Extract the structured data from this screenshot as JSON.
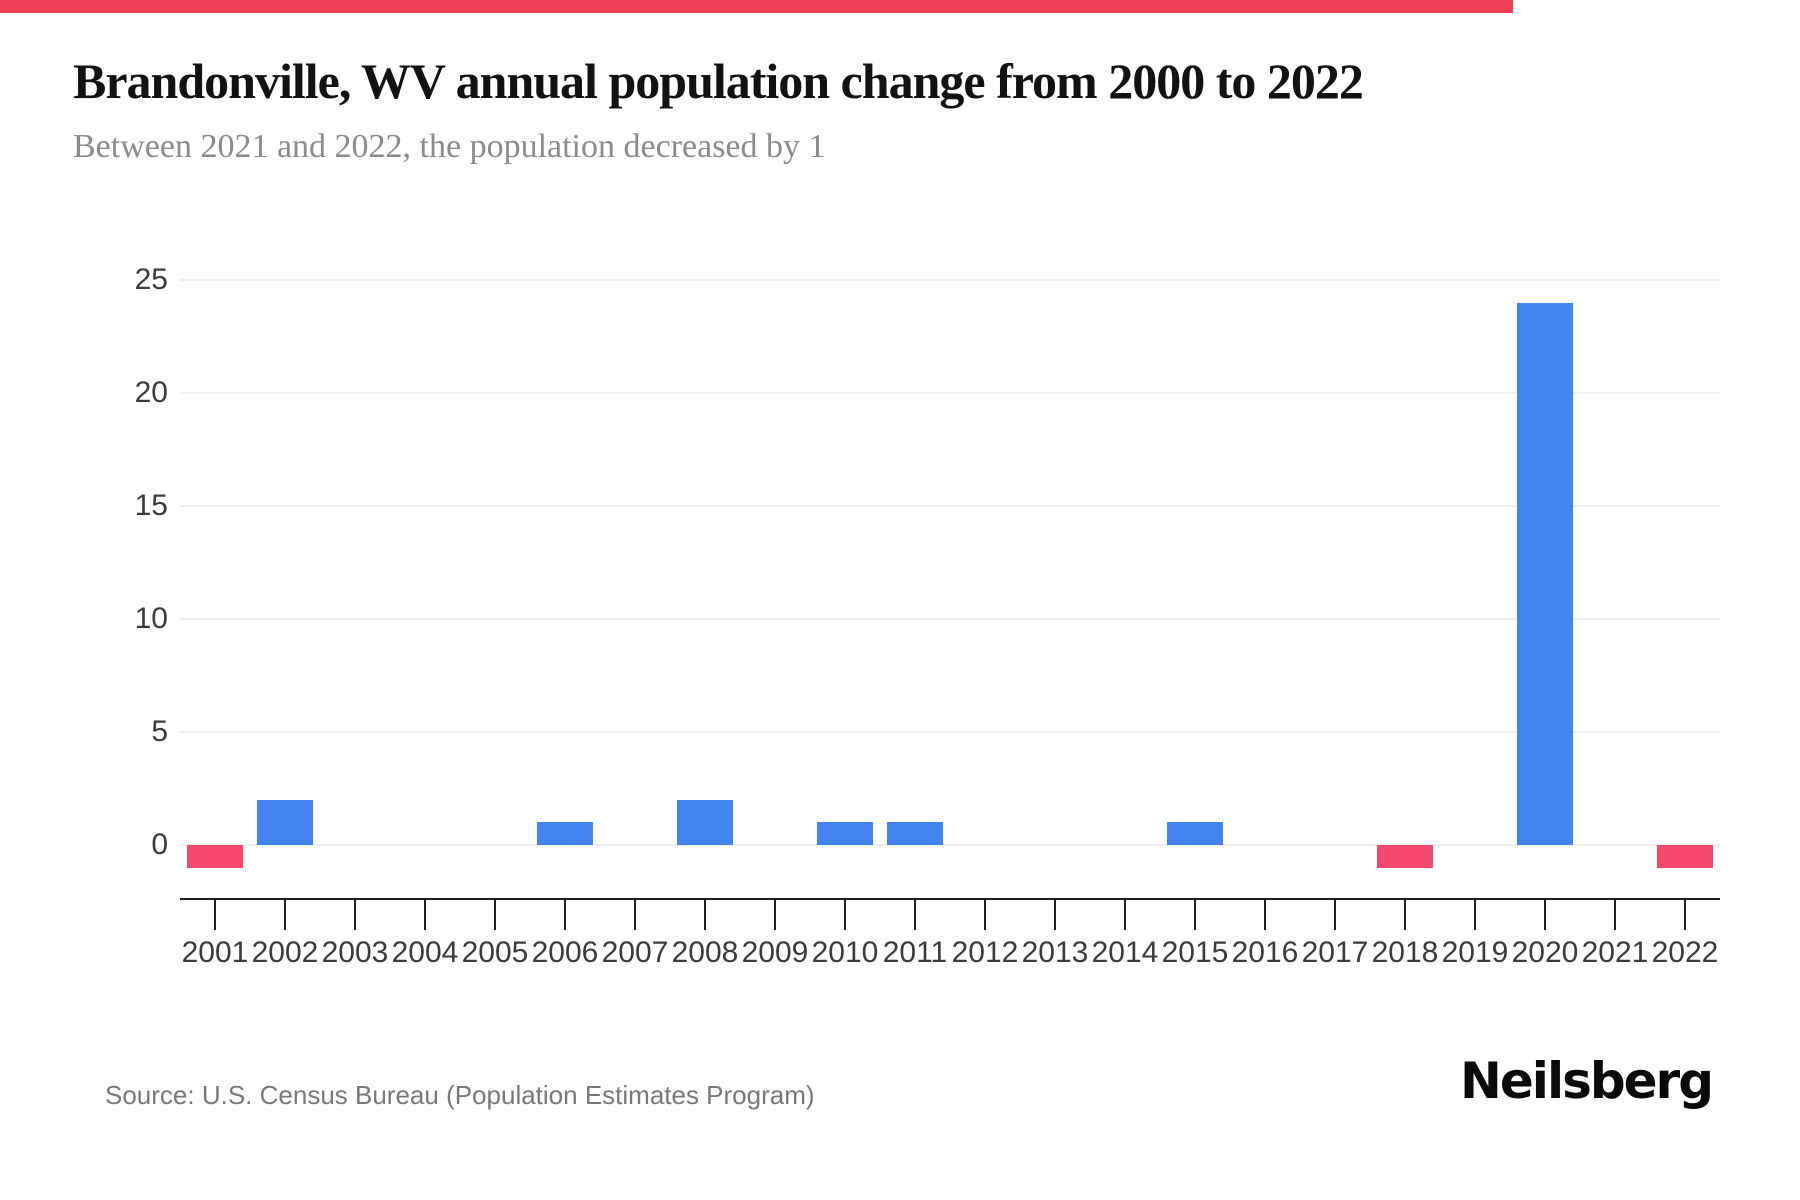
{
  "page": {
    "accent_bar_color": "#ee4156",
    "background_color": "#ffffff"
  },
  "header": {
    "title": "Brandonville, WV annual population change from 2000 to 2022",
    "subtitle": "Between 2021 and 2022, the population decreased by 1"
  },
  "chart_data": {
    "type": "bar",
    "title": "Brandonville, WV annual population change from 2000 to 2022",
    "subtitle": "Between 2021 and 2022, the population decreased by 1",
    "categories": [
      "2001",
      "2002",
      "2003",
      "2004",
      "2005",
      "2006",
      "2007",
      "2008",
      "2009",
      "2010",
      "2011",
      "2012",
      "2013",
      "2014",
      "2015",
      "2016",
      "2017",
      "2018",
      "2019",
      "2020",
      "2021",
      "2022"
    ],
    "values": [
      -1,
      2,
      0,
      0,
      0,
      1,
      0,
      2,
      0,
      1,
      1,
      0,
      0,
      0,
      1,
      0,
      0,
      -1,
      0,
      24,
      0,
      -1
    ],
    "series_name": "Annual population change",
    "xlabel": "",
    "ylabel": "",
    "yticks": [
      0,
      5,
      10,
      15,
      20,
      25
    ],
    "ylim": [
      -2.4,
      26.5
    ],
    "grid": "horizontal",
    "legend": "none",
    "bar_color_positive": "#4484f0",
    "bar_color_negative": "#f4486d",
    "gridline_color": "#efefef",
    "axis_color": "#1e1e1e"
  },
  "footer": {
    "source": "Source: U.S. Census Bureau (Population Estimates Program)",
    "brand": "Neilsberg"
  }
}
